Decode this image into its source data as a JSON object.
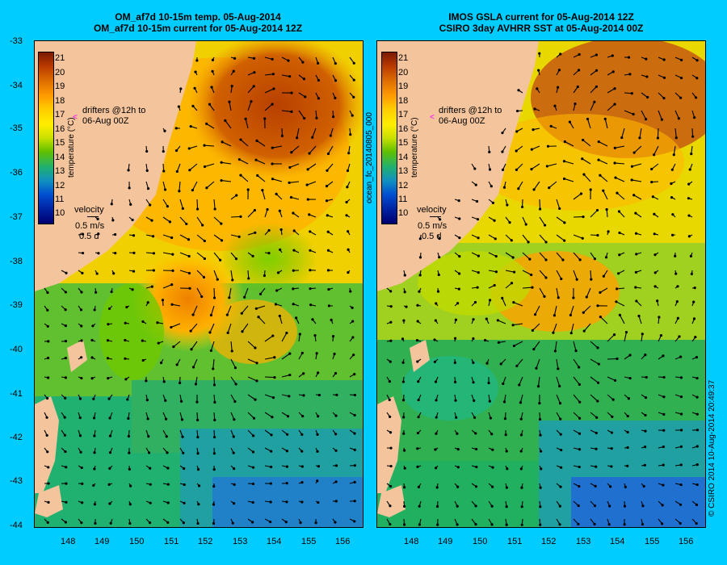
{
  "left_panel": {
    "title_line1": "OM_af7d 10-15m temp. 05-Aug-2014",
    "title_line2": "OM_af7d 10-15m current for 05-Aug-2014 12Z",
    "drifters_line1": "drifters @12h to",
    "drifters_line2": "06-Aug 00Z",
    "velocity_label": "velocity",
    "velocity_speed": "0.5 m/s",
    "velocity_days": "0.5 d",
    "colorbar_title": "temperature (°C)"
  },
  "right_panel": {
    "title_line1": "IMOS GSLA current for 05-Aug-2014 12Z",
    "title_line2": "CSIRO 3day AVHRR SST at 05-Aug-2014 00Z",
    "drifters_line1": "drifters @12h to",
    "drifters_line2": "06-Aug 00Z",
    "velocity_label": "velocity",
    "velocity_speed": "0.5 m/s",
    "velocity_days": "0.5 d",
    "colorbar_title": "temperature (°C)"
  },
  "colorbar_ticks": [
    "21",
    "20",
    "19",
    "18",
    "17",
    "16",
    "15",
    "14",
    "13",
    "12",
    "11",
    "10"
  ],
  "lat_ticks": [
    "-33",
    "-34",
    "-35",
    "-36",
    "-37",
    "-38",
    "-39",
    "-40",
    "-41",
    "-42",
    "-43",
    "-44"
  ],
  "lon_ticks": [
    "148",
    "149",
    "150",
    "151",
    "152",
    "153",
    "154",
    "155",
    "156"
  ],
  "side_text_middle": "ocean_fc_20140805_000",
  "side_text_right": "© CSIRO 2014   10-Aug-2014 20:49:37",
  "colors": {
    "background": "#00ccff",
    "land": "#f4c49c",
    "drifter_marker": "#ff00ff"
  }
}
